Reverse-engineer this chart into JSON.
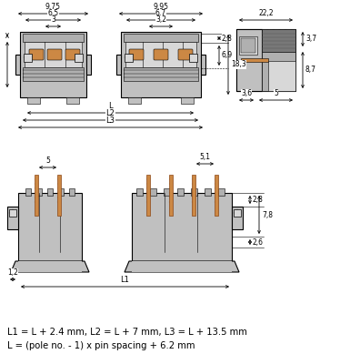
{
  "bg_color": "#ffffff",
  "lc": "#000000",
  "gc": "#c0c0c0",
  "gc2": "#b0b0b0",
  "gc_dark": "#888888",
  "gc_light": "#d8d8d8",
  "oc": "#cc8844",
  "hatch_color": "#909090",
  "formula_line1": "L1 = L + 2.4 mm, L2 = L + 7 mm, L3 = L + 13.5 mm",
  "formula_line2": "L = (pole no. - 1) x pin spacing + 6.2 mm"
}
